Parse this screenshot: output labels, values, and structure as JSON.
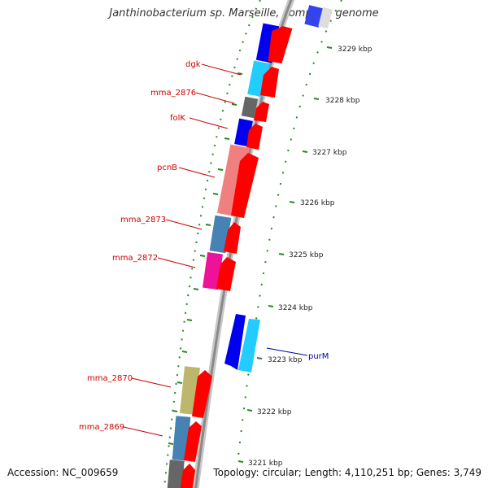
{
  "title": "Janthinobacterium sp. Marseille, complete genome",
  "footer": {
    "accession": "Accession: NC_009659",
    "summary": "Topology: circular; Length: 4,110,251 bp; Genes: 3,749"
  },
  "colors": {
    "cds_red": "#ff0000",
    "blue": "#0000ee",
    "cyan": "#22ccff",
    "gray": "#666666",
    "salmon": "#f08080",
    "steelblue": "#4682b4",
    "magenta": "#ee1199",
    "khaki": "#bdb76b",
    "label_red": "#cc0000",
    "label_blue": "#0000aa",
    "dot_green": "#228b22"
  },
  "ruler": {
    "ticks": [
      {
        "label": "3229 kbp"
      },
      {
        "label": "3228 kbp"
      },
      {
        "label": "3227 kbp"
      },
      {
        "label": "3226 kbp"
      },
      {
        "label": "3225 kbp"
      },
      {
        "label": "3224 kbp"
      },
      {
        "label": "3223 kbp"
      },
      {
        "label": "3222 kbp"
      },
      {
        "label": "3221 kbp"
      }
    ]
  },
  "genes": {
    "dgk": "dgk",
    "mma_2876": "mma_2876",
    "folK": "folK",
    "pcnB": "pcnB",
    "mma_2873": "mma_2873",
    "mma_2872": "mma_2872",
    "purM": "purM",
    "mma_2870": "mma_2870",
    "mma_2869": "mma_2869"
  }
}
